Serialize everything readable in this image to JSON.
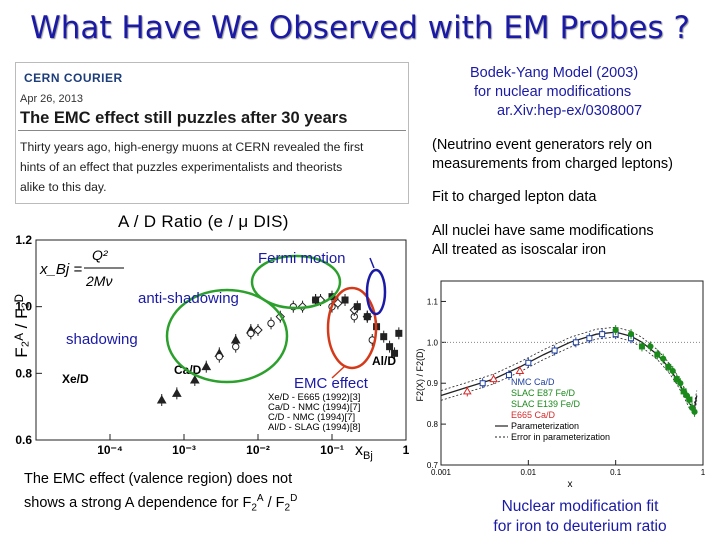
{
  "slide_title": "What Have We Observed with EM Probes ?",
  "news_clip": {
    "source": "CERN COURIER",
    "date": "Apr 26, 2013",
    "headline": "The EMC effect still puzzles after 30 years",
    "body_lines": [
      "Thirty years ago, high-energy muons at CERN revealed the first",
      "hints of an effect that puzzles experimentalists and theorists",
      "alike to this day."
    ]
  },
  "right_notes": {
    "model_line1": "Bodek-Yang Model (2003)",
    "model_line2": "for nuclear modifications",
    "arxiv": "ar.Xiv:hep-ex/0308007",
    "neutrino_line1": "(Neutrino event generators rely on",
    "neutrino_line2": "measurements from charged leptons)",
    "fit_line": "Fit to charged lepton data",
    "all_nuclei_line1": "All nuclei have same modifications",
    "all_nuclei_line2": "All treated as isoscalar iron"
  },
  "ratio_plot": {
    "title": "A / D   Ratio (e / μ DIS)",
    "y_axis_label": "F₂ᴬ / F₂ᴰ",
    "x_axis_label": "x",
    "x_axis_sub": "Bj",
    "formula_lhs": "x_Bj =",
    "formula_num": "Q²",
    "formula_den": "2Mν",
    "region_labels": {
      "fermi": "Fermi motion",
      "antishadowing": "anti-shadowing",
      "shadowing": "shadowing",
      "emc": "EMC effect"
    },
    "panel_labels": [
      "Xe/D",
      "Ca/D",
      "Al/D"
    ],
    "legend": [
      "Xe/D - E665 (1992)[3]",
      "Ca/D - NMC (1994)[7]",
      "C/D - NMC (1994)[7]",
      "Al/D - SLAG (1994)[8]"
    ],
    "highlight_colors": {
      "shadowing": "#2ca02c",
      "antishadowing": "#2ca02c",
      "emc": "#d43a1a",
      "fermi": "#1a1aa6"
    }
  },
  "fit_plot": {
    "legend": [
      "NMC Ca/D",
      "SLAC E87 Fe/D",
      "SLAC E139 Fe/D",
      "E665 Ca/D",
      "Parameterization",
      "Error in parameterization"
    ],
    "x_axis_label": "x",
    "y_axis_label": "F2(X) / F2(D)",
    "series_colors": {
      "nmc": "#1f3f9f",
      "slac_e87": "#1a8a1a",
      "slac_e139": "#1a8a1a",
      "e665": "#d42a2a"
    }
  },
  "chart_data": [
    {
      "type": "scatter",
      "title": "A / D   Ratio (e / μ DIS)",
      "xlabel": "x_Bj",
      "ylabel": "F2A / F2D",
      "log_x": true,
      "xlim": [
        1e-05,
        1
      ],
      "ylim": [
        0.6,
        1.2
      ],
      "x_ticks": [
        "10⁻⁴",
        "10⁻³",
        "10⁻²",
        "10⁻¹",
        "1"
      ],
      "y_ticks": [
        "0.6",
        "0.8",
        "1.0",
        "1.2"
      ],
      "series": [
        {
          "name": "Xe/D - E665 (1992)[3]",
          "x": [
            0.0005,
            0.0008,
            0.0014,
            0.002,
            0.003,
            0.005,
            0.008
          ],
          "y": [
            0.72,
            0.74,
            0.78,
            0.82,
            0.86,
            0.9,
            0.93
          ]
        },
        {
          "name": "Ca/D - NMC (1994)[7]",
          "x": [
            0.003,
            0.005,
            0.008,
            0.015,
            0.03,
            0.06,
            0.1,
            0.2,
            0.35
          ],
          "y": [
            0.85,
            0.88,
            0.92,
            0.95,
            1.0,
            1.02,
            1.0,
            0.97,
            0.9
          ]
        },
        {
          "name": "C/D - NMC (1994)[7]",
          "x": [
            0.01,
            0.02,
            0.04,
            0.07,
            0.12,
            0.2,
            0.3
          ],
          "y": [
            0.93,
            0.97,
            1.0,
            1.02,
            1.01,
            0.99,
            0.97
          ]
        },
        {
          "name": "Al/D - SLAG (1994)[8]",
          "x": [
            0.06,
            0.1,
            0.15,
            0.22,
            0.3,
            0.4,
            0.5,
            0.6,
            0.7,
            0.8
          ],
          "y": [
            1.02,
            1.03,
            1.02,
            1.0,
            0.97,
            0.94,
            0.91,
            0.88,
            0.86,
            0.92
          ]
        }
      ],
      "grid": false
    },
    {
      "type": "scatter",
      "xlabel": "x",
      "ylabel": "F2(X) / F2(D)",
      "log_x": true,
      "xlim": [
        0.001,
        1
      ],
      "ylim": [
        0.7,
        1.15
      ],
      "x_ticks": [
        "0.001",
        "0.01",
        "0.1",
        "1"
      ],
      "y_ticks": [
        "0.7",
        "0.8",
        "0.9",
        "1.0",
        "1.1"
      ],
      "series": [
        {
          "name": "NMC Ca/D",
          "x": [
            0.003,
            0.006,
            0.01,
            0.02,
            0.035,
            0.05,
            0.07,
            0.1,
            0.15
          ],
          "y": [
            0.9,
            0.92,
            0.95,
            0.98,
            1.0,
            1.01,
            1.02,
            1.02,
            1.01
          ]
        },
        {
          "name": "SLAC E87 Fe/D",
          "x": [
            0.2,
            0.3,
            0.4,
            0.5,
            0.6,
            0.7
          ],
          "y": [
            0.99,
            0.97,
            0.94,
            0.91,
            0.88,
            0.86
          ]
        },
        {
          "name": "SLAC E139 Fe/D",
          "x": [
            0.1,
            0.15,
            0.25,
            0.35,
            0.45,
            0.55,
            0.65,
            0.75,
            0.8
          ],
          "y": [
            1.03,
            1.02,
            0.99,
            0.96,
            0.93,
            0.9,
            0.87,
            0.84,
            0.83
          ]
        },
        {
          "name": "E665 Ca/D",
          "x": [
            0.002,
            0.004,
            0.008
          ],
          "y": [
            0.88,
            0.91,
            0.93
          ]
        }
      ],
      "grid": false
    }
  ],
  "bottom_left_text_line1": "The EMC effect (valence region) does not",
  "bottom_left_text_line2": "shows a strong A dependence for F",
  "bottom_left_tail_sub1": "2",
  "bottom_left_tail_sup1": "A",
  "bottom_left_tail_mid": " / F",
  "bottom_left_tail_sub2": "2",
  "bottom_left_tail_sup2": "D",
  "fit_caption_line1": "Nuclear modification fit",
  "fit_caption_line2": "for iron to deuterium ratio"
}
